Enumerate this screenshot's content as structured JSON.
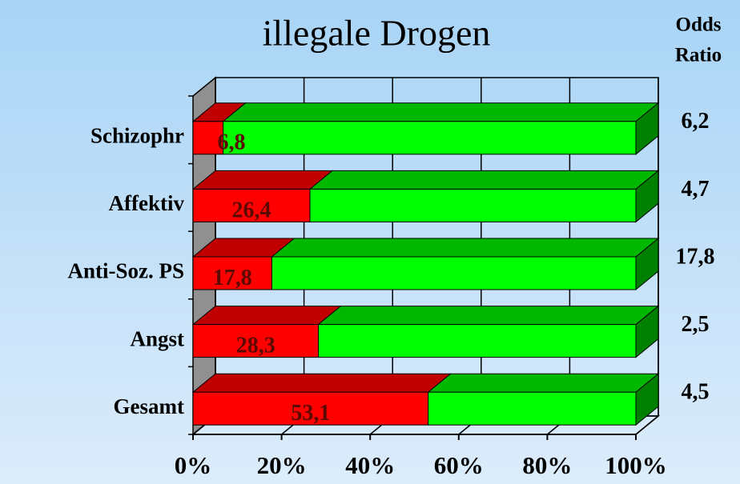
{
  "chart_data": {
    "type": "bar3d_stacked_horizontal",
    "title": "illegale Drogen",
    "categories": [
      "Schizophr",
      "Affektiv",
      "Anti-Soz. PS",
      "Angst",
      "Gesamt"
    ],
    "series": [
      {
        "color": "#ff0000",
        "values": [
          6.8,
          26.4,
          17.8,
          28.3,
          53.1
        ],
        "value_labels": [
          "6,8",
          "26,4",
          "17,8",
          "28,3",
          "53,1"
        ]
      },
      {
        "color": "#00ff00",
        "values": [
          93.2,
          73.6,
          82.2,
          71.7,
          46.9
        ]
      }
    ],
    "xlim": [
      0,
      100
    ],
    "xticks": [
      {
        "value": 0,
        "label": "0%"
      },
      {
        "value": 20,
        "label": "20%"
      },
      {
        "value": 40,
        "label": "40%"
      },
      {
        "value": 60,
        "label": "60%"
      },
      {
        "value": 80,
        "label": "80%"
      },
      {
        "value": 100,
        "label": "100%"
      }
    ],
    "odds_ratio": {
      "title_lines": [
        "Odds",
        "Ratio"
      ],
      "values": [
        6.2,
        4.7,
        17.8,
        2.5,
        4.5
      ],
      "value_labels": [
        "6,2",
        "4,7",
        "17,8",
        "2,5",
        "4,5"
      ]
    },
    "grid": true
  }
}
